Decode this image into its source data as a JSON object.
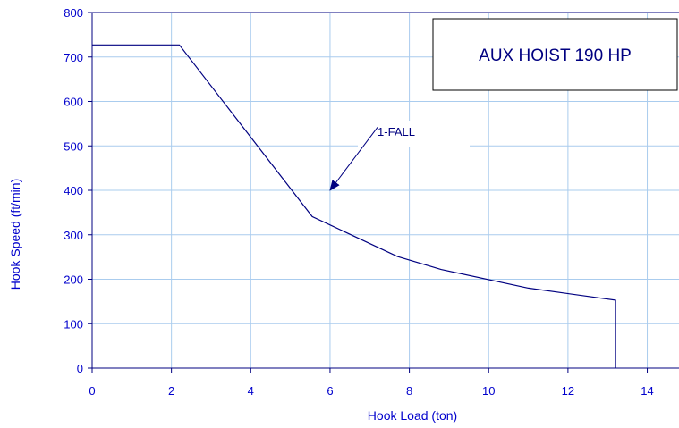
{
  "chart_data": {
    "type": "line",
    "title": "AUX HOIST 190 HP",
    "xlabel": "Hook Load (ton)",
    "ylabel": "Hook Speed (ft/min)",
    "xlim": [
      0,
      14.8
    ],
    "ylim": [
      0,
      800
    ],
    "x_ticks": [
      0,
      2,
      4,
      6,
      8,
      10,
      12,
      14
    ],
    "y_ticks": [
      0,
      100,
      200,
      300,
      400,
      500,
      600,
      700,
      800
    ],
    "grid": true,
    "series": [
      {
        "points": [
          [
            0,
            727
          ],
          [
            2.2,
            727
          ],
          [
            5.55,
            341
          ],
          [
            7.7,
            251
          ],
          [
            8.8,
            222
          ],
          [
            11.0,
            180
          ],
          [
            13.2,
            153
          ],
          [
            13.2,
            0
          ]
        ]
      }
    ],
    "annotations": [
      {
        "text": "1-FALL",
        "label_at": [
          7.2,
          530
        ],
        "arrow_to": [
          6.0,
          400
        ]
      }
    ],
    "colors": {
      "line": "#000080",
      "grid": "#aaccee",
      "axis": "#000080",
      "text": "#0000cc"
    }
  }
}
